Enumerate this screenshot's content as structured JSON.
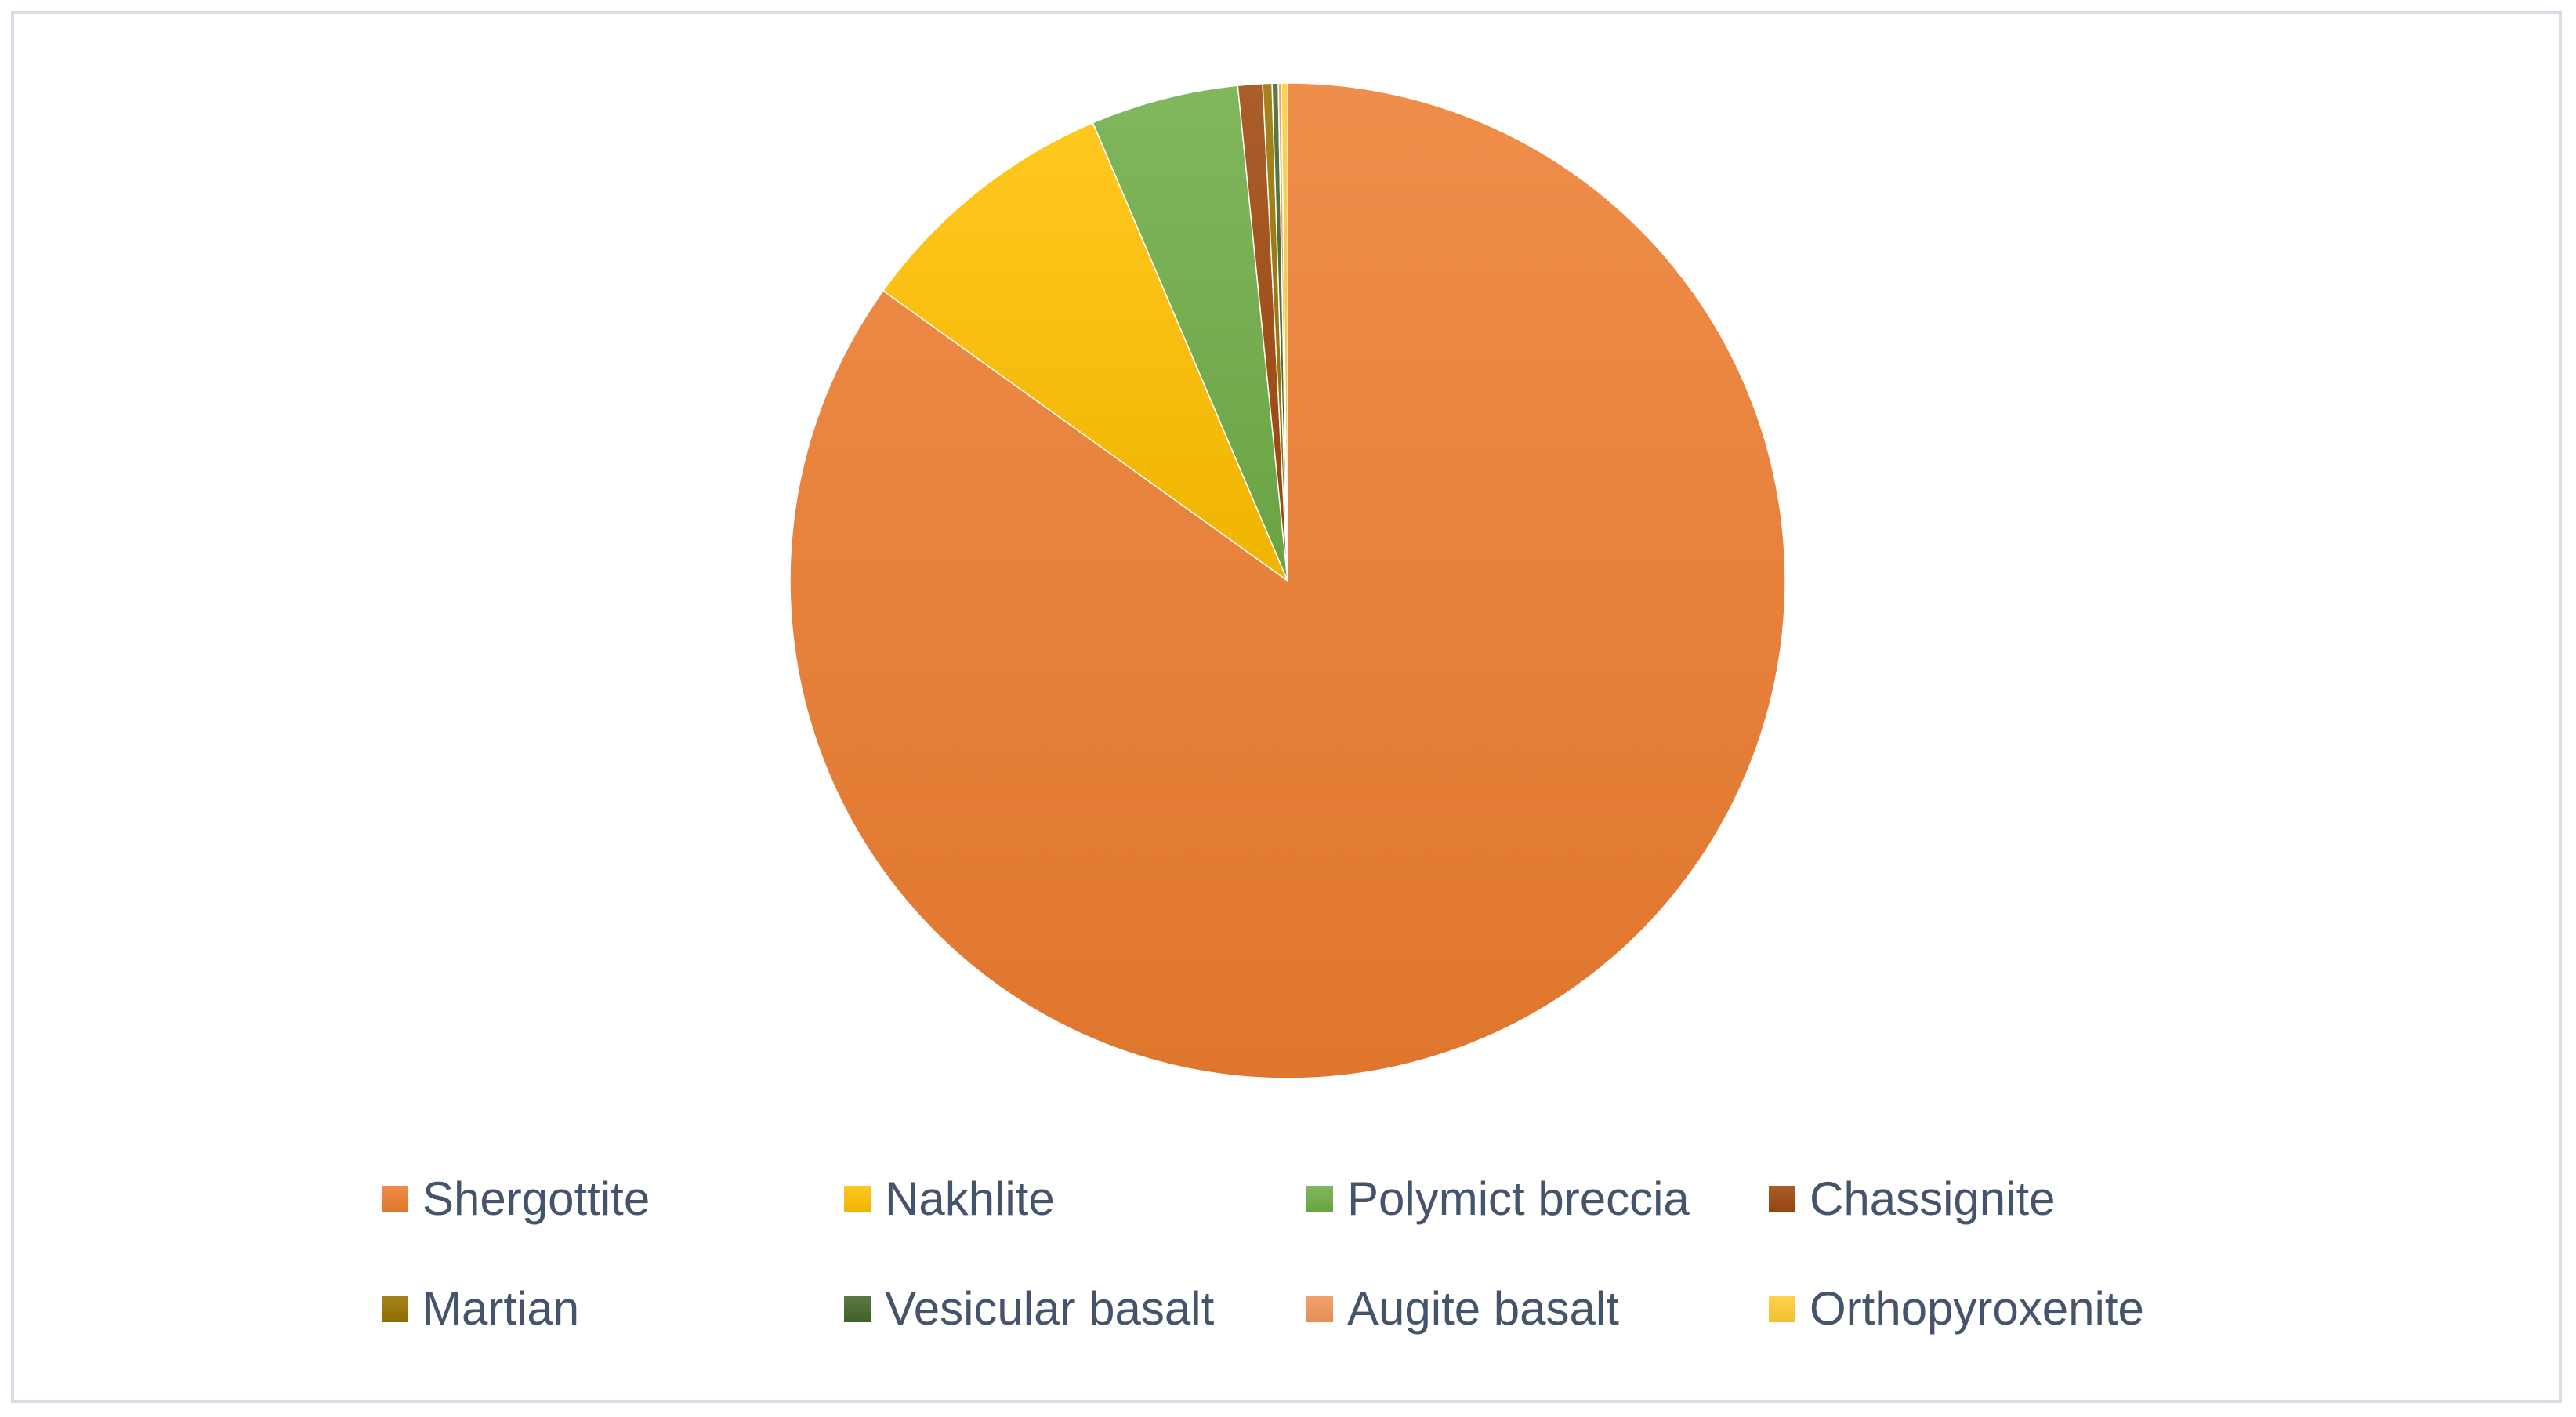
{
  "chart_data": {
    "type": "pie",
    "title": "",
    "categories": [
      "Shergottite",
      "Nakhlite",
      "Polymict breccia",
      "Chassignite",
      "Martian",
      "Vesicular basalt",
      "Augite basalt",
      "Orthopyroxenite"
    ],
    "values": [
      84.9,
      8.7,
      4.8,
      0.8,
      0.3,
      0.2,
      0.1,
      0.2
    ],
    "value_unit": "percent",
    "colors": [
      "#ED7D31",
      "#FFC000",
      "#70AD47",
      "#9E480E",
      "#997300",
      "#43682B",
      "#F1975A",
      "#FFCD33"
    ],
    "start_angle_deg": 0,
    "direction": "clockwise",
    "legend_position": "bottom",
    "legend_rows": 2,
    "legend_columns": 4
  }
}
